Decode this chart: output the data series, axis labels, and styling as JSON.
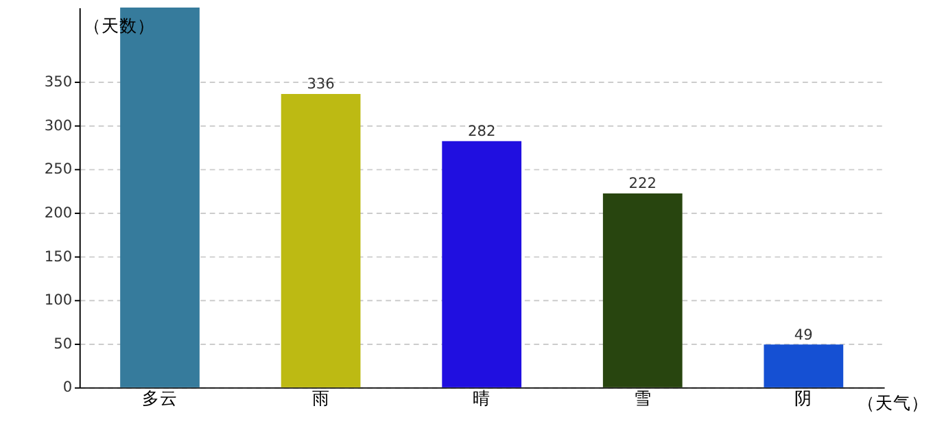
{
  "chart_data": {
    "type": "bar",
    "xlabel": "（天气）",
    "ylabel": "（天数）",
    "categories": [
      "多云",
      "雨",
      "晴",
      "雪",
      "阴"
    ],
    "values": [
      435,
      336,
      282,
      222,
      49
    ],
    "value_labels": [
      null,
      "336",
      "282",
      "222",
      "49"
    ],
    "colors": [
      "#367b9c",
      "#bdba13",
      "#200fe0",
      "#28450f",
      "#1550d3"
    ],
    "ylim": [
      0,
      435
    ],
    "yticks": [
      0,
      50,
      100,
      150,
      200,
      250,
      300,
      350
    ],
    "grid": "y"
  }
}
